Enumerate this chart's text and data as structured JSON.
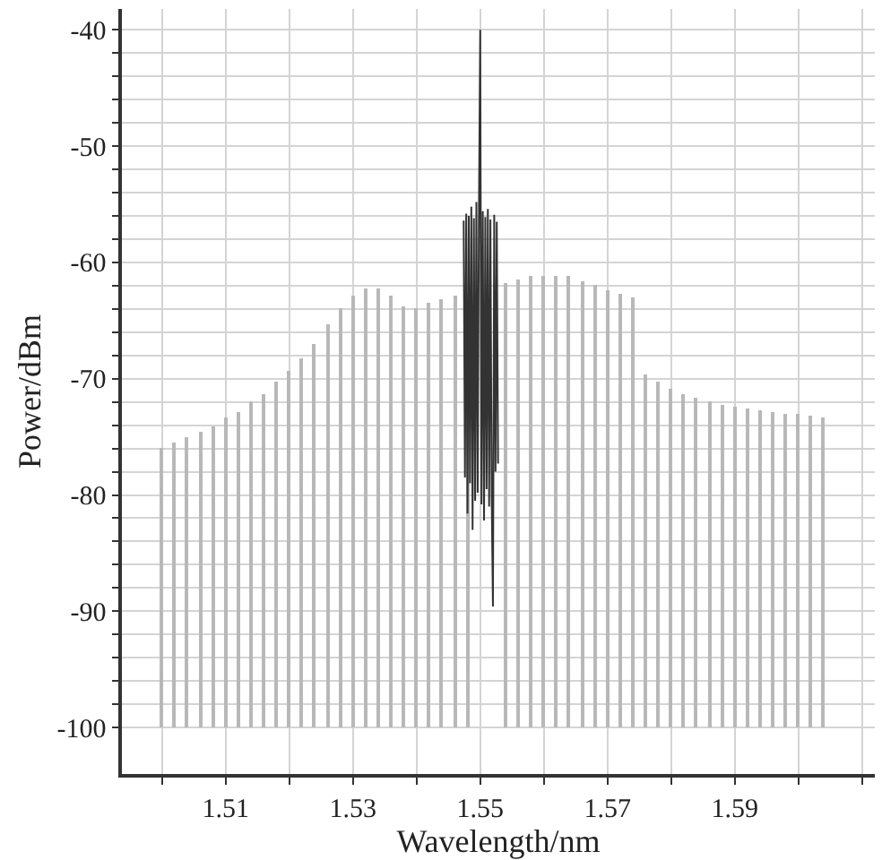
{
  "chart_data": {
    "type": "bar",
    "xlabel": "Wavelength/nm",
    "ylabel": "Power/dBm",
    "xlim": [
      1.4937,
      1.612
    ],
    "ylim": [
      -104.0,
      -38.2
    ],
    "xticks": [
      {
        "value": 1.5,
        "label": null
      },
      1.51,
      {
        "value": 1.52,
        "label": null
      },
      1.53,
      {
        "value": 1.54,
        "label": null
      },
      1.55,
      {
        "value": 1.56,
        "label": null
      },
      1.57,
      {
        "value": 1.58,
        "label": null
      },
      1.59,
      {
        "value": 1.6,
        "label": null
      },
      {
        "value": 1.61,
        "label": null
      }
    ],
    "yticks": [
      -100,
      {
        "value": -98,
        "label": null
      },
      {
        "value": -96,
        "label": null
      },
      {
        "value": -94,
        "label": null
      },
      {
        "value": -92,
        "label": null
      },
      -90,
      {
        "value": -88,
        "label": null
      },
      {
        "value": -86,
        "label": null
      },
      {
        "value": -84,
        "label": null
      },
      {
        "value": -82,
        "label": null
      },
      -80,
      {
        "value": -78,
        "label": null
      },
      {
        "value": -76,
        "label": null
      },
      {
        "value": -74,
        "label": null
      },
      {
        "value": -72,
        "label": null
      },
      -70,
      {
        "value": -68,
        "label": null
      },
      {
        "value": -66,
        "label": null
      },
      {
        "value": -64,
        "label": null
      },
      {
        "value": -62,
        "label": null
      },
      -60,
      {
        "value": -58,
        "label": null
      },
      {
        "value": -56,
        "label": null
      },
      {
        "value": -54,
        "label": null
      },
      {
        "value": -52,
        "label": null
      },
      -50,
      {
        "value": -48,
        "label": null
      },
      {
        "value": -46,
        "label": null
      },
      {
        "value": -44,
        "label": null
      },
      {
        "value": -42,
        "label": null
      },
      -40
    ],
    "grid": true,
    "series": [
      {
        "color": "#b8b8b8",
        "x": [
          1.5,
          1.502,
          1.504,
          1.506,
          1.508,
          1.51,
          1.512,
          1.514,
          1.516,
          1.518,
          1.52,
          1.522,
          1.524,
          1.526,
          1.528,
          1.53,
          1.532,
          1.534,
          1.536,
          1.538,
          1.54,
          1.542,
          1.544,
          1.546,
          1.548,
          1.55,
          1.552,
          1.554,
          1.556,
          1.558,
          1.56,
          1.562,
          1.564,
          1.566,
          1.568,
          1.57,
          1.572,
          1.574,
          1.576,
          1.578,
          1.58,
          1.582,
          1.584,
          1.586,
          1.588,
          1.59,
          1.592,
          1.594,
          1.596,
          1.598,
          1.6,
          1.602,
          1.604
        ],
        "base": [
          -100,
          -100,
          -100,
          -100,
          -100,
          -100,
          -100,
          -100,
          -100,
          -100,
          -100,
          -100,
          -100,
          -100,
          -100,
          -100,
          -100,
          -100,
          -100,
          -100,
          -100,
          -100,
          -100,
          -100,
          -100,
          null,
          null,
          -100,
          -100,
          -100,
          -100,
          -100,
          -100,
          -100,
          -100,
          -100,
          -100,
          -100,
          -100,
          -100,
          -100,
          -100,
          -100,
          -100,
          -100,
          -100,
          -100,
          -100,
          -100,
          -100,
          -100,
          -100,
          -100
        ],
        "values": [
          24.1,
          24.5,
          24.9,
          25.4,
          25.9,
          26.6,
          27.2,
          28.0,
          28.6,
          29.7,
          30.7,
          31.7,
          33.0,
          34.7,
          36.0,
          37.2,
          37.8,
          37.8,
          37.1,
          36.2,
          36.1,
          36.5,
          36.8,
          37.1,
          37.3,
          null,
          null,
          38.2,
          38.5,
          38.8,
          38.9,
          38.9,
          38.8,
          38.4,
          38.0,
          37.6,
          37.3,
          37.0,
          30.3,
          29.7,
          29.1,
          28.7,
          28.3,
          28.0,
          27.8,
          27.6,
          27.5,
          27.3,
          27.2,
          27.0,
          26.9,
          26.8,
          26.7
        ]
      },
      {
        "type": "line",
        "color": "#333333",
        "x": [
          1.5474,
          1.5476,
          1.5478,
          1.548,
          1.5482,
          1.5484,
          1.5486,
          1.5488,
          1.549,
          1.5492,
          1.5494,
          1.5496,
          1.5498,
          1.55,
          1.5502,
          1.5504,
          1.5506,
          1.5508,
          1.551,
          1.5512,
          1.5514,
          1.5516,
          1.5518,
          1.552,
          1.5522,
          1.5524,
          1.5526,
          1.5528
        ],
        "values": [
          -56.4,
          -78.5,
          -55.8,
          -81.6,
          -56.0,
          -79.0,
          -55.2,
          -83.0,
          -56.2,
          -80.5,
          -54.8,
          -79.8,
          -55.5,
          -40.0,
          -80.8,
          -55.6,
          -82.2,
          -56.1,
          -79.5,
          -55.4,
          -81.0,
          -56.3,
          -80.0,
          -89.6,
          -55.9,
          -78.0,
          -56.5,
          -77.3
        ]
      }
    ]
  }
}
